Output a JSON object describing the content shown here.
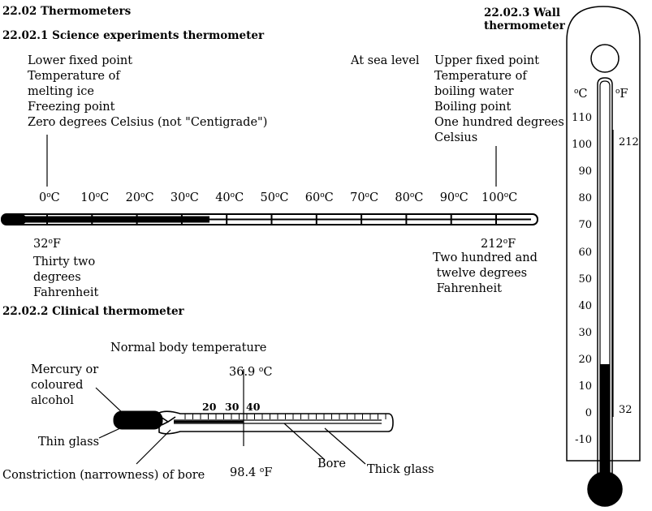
{
  "headings": {
    "main": "22.02 Thermometers",
    "science": "22.02.1 Science experiments thermometer",
    "clinical": "22.02.2 Clinical thermometer",
    "wall": "22.02.3 Wall\nthermometer"
  },
  "science": {
    "at_sea_level": "At sea level",
    "lower_fixed_point": "Lower fixed point\nTemperature of\nmelting ice\nFreezing point\nZero degrees Celsius (not \"Centigrade\")",
    "upper_fixed_point": "Upper fixed point\nTemperature of\nboiling water\nBoiling point\nOne hundred degrees\nCelsius",
    "celsius_scale": [
      {
        "value": "0",
        "unit": "C"
      },
      {
        "value": "10",
        "unit": "C"
      },
      {
        "value": "20",
        "unit": "C"
      },
      {
        "value": "30",
        "unit": "C"
      },
      {
        "value": "40",
        "unit": "C"
      },
      {
        "value": "50",
        "unit": "C"
      },
      {
        "value": "60",
        "unit": "C"
      },
      {
        "value": "70",
        "unit": "C"
      },
      {
        "value": "80",
        "unit": "C"
      },
      {
        "value": "90",
        "unit": "C"
      },
      {
        "value": "100",
        "unit": "C"
      }
    ],
    "fahrenheit_32": {
      "value": "32",
      "unit": "F"
    },
    "fahrenheit_212": {
      "value": "212",
      "unit": "F"
    },
    "thirty_two_words": "Thirty two\ndegrees\nFahrenheit",
    "two_twelve_words": "Two hundred and\n twelve degrees\n Fahrenheit"
  },
  "clinical": {
    "normal_body_temperature": "Normal body temperature",
    "celsius_value": {
      "value": "36.9",
      "unit": "C"
    },
    "fahrenheit_value": {
      "value": "98.4",
      "unit": "F"
    },
    "scale": [
      "20",
      "30",
      "40"
    ],
    "mercury_label": "Mercury or\ncoloured\nalcohol",
    "thin_glass": "Thin glass",
    "constriction": "Constriction (narrowness) of bore",
    "bore": "Bore",
    "thick_glass": "Thick glass"
  },
  "wall": {
    "celsius_header": {
      "unit": "C"
    },
    "fahrenheit_header": {
      "unit": "F"
    },
    "celsius_scale": [
      "110",
      "100",
      "90",
      "80",
      "70",
      "60",
      "50",
      "40",
      "30",
      "20",
      "10",
      "0",
      "-10"
    ],
    "fahrenheit_212": "212",
    "fahrenheit_32": "32"
  },
  "colors": {
    "ink": "#000000",
    "background": "#ffffff"
  }
}
